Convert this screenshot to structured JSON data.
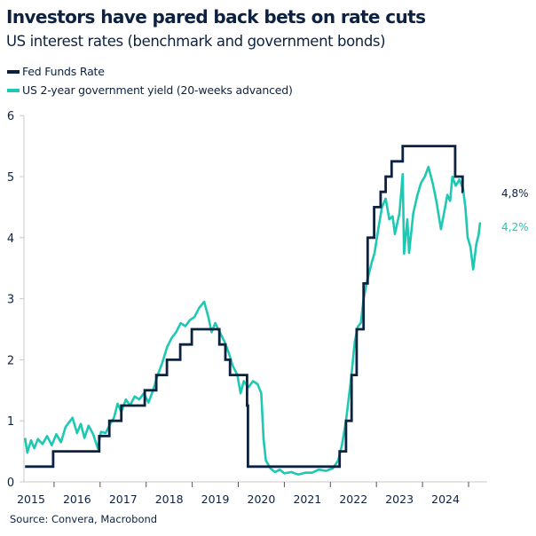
{
  "title": "Investors have pared back bets on rate cuts",
  "subtitle": "US interest rates (benchmark and government bonds)",
  "source": "Source: Convera, Macrobond",
  "colors": {
    "fed": "#0d2240",
    "yield": "#1ec8b2",
    "axis": "#c8c8c8",
    "text": "#0d2240"
  },
  "chart_data": {
    "type": "line",
    "title": "Investors have pared back bets on rate cuts",
    "subtitle": "US interest rates (benchmark and government bonds)",
    "xlabel": "",
    "ylabel": "",
    "xlim": [
      2015.0,
      2025.4
    ],
    "ylim": [
      0,
      6
    ],
    "yticks": [
      "0",
      "1",
      "2",
      "3",
      "4",
      "5",
      "6"
    ],
    "xticks": [
      "2015",
      "2016",
      "2017",
      "2018",
      "2019",
      "2020",
      "2021",
      "2022",
      "2023",
      "2024"
    ],
    "grid": false,
    "legend_position": "top-left",
    "series": [
      {
        "name": "Fed Funds Rate",
        "style": "step",
        "end_label": "4,8%",
        "points": [
          [
            2015.37,
            0.25
          ],
          [
            2015.98,
            0.5
          ],
          [
            2016.98,
            0.75
          ],
          [
            2017.2,
            1.0
          ],
          [
            2017.46,
            1.25
          ],
          [
            2017.97,
            1.5
          ],
          [
            2018.22,
            1.75
          ],
          [
            2018.45,
            2.0
          ],
          [
            2018.74,
            2.25
          ],
          [
            2018.99,
            2.5
          ],
          [
            2019.59,
            2.25
          ],
          [
            2019.72,
            2.0
          ],
          [
            2019.82,
            1.75
          ],
          [
            2020.19,
            1.25
          ],
          [
            2020.21,
            0.25
          ],
          [
            2022.2,
            0.5
          ],
          [
            2022.34,
            1.0
          ],
          [
            2022.46,
            1.75
          ],
          [
            2022.57,
            2.5
          ],
          [
            2022.72,
            3.25
          ],
          [
            2022.81,
            4.0
          ],
          [
            2022.95,
            4.5
          ],
          [
            2023.09,
            4.75
          ],
          [
            2023.2,
            5.0
          ],
          [
            2023.33,
            5.25
          ],
          [
            2023.57,
            5.5
          ],
          [
            2024.71,
            5.0
          ],
          [
            2024.87,
            4.75
          ],
          [
            2024.88,
            4.75
          ]
        ]
      },
      {
        "name": "US 2-year government yield (20-weeks advanced)",
        "style": "line",
        "end_label": "4,2%",
        "points": [
          [
            2015.37,
            0.72
          ],
          [
            2015.42,
            0.48
          ],
          [
            2015.5,
            0.68
          ],
          [
            2015.57,
            0.55
          ],
          [
            2015.65,
            0.7
          ],
          [
            2015.75,
            0.62
          ],
          [
            2015.85,
            0.75
          ],
          [
            2015.95,
            0.6
          ],
          [
            2016.05,
            0.78
          ],
          [
            2016.15,
            0.65
          ],
          [
            2016.25,
            0.9
          ],
          [
            2016.4,
            1.05
          ],
          [
            2016.5,
            0.8
          ],
          [
            2016.58,
            0.95
          ],
          [
            2016.66,
            0.72
          ],
          [
            2016.75,
            0.92
          ],
          [
            2016.85,
            0.78
          ],
          [
            2016.95,
            0.55
          ],
          [
            2017.02,
            0.82
          ],
          [
            2017.12,
            0.8
          ],
          [
            2017.22,
            0.95
          ],
          [
            2017.3,
            1.05
          ],
          [
            2017.38,
            1.28
          ],
          [
            2017.46,
            1.15
          ],
          [
            2017.56,
            1.35
          ],
          [
            2017.65,
            1.25
          ],
          [
            2017.75,
            1.4
          ],
          [
            2017.85,
            1.35
          ],
          [
            2017.95,
            1.45
          ],
          [
            2018.05,
            1.3
          ],
          [
            2018.15,
            1.5
          ],
          [
            2018.25,
            1.75
          ],
          [
            2018.35,
            1.95
          ],
          [
            2018.45,
            2.2
          ],
          [
            2018.55,
            2.35
          ],
          [
            2018.65,
            2.45
          ],
          [
            2018.75,
            2.6
          ],
          [
            2018.85,
            2.55
          ],
          [
            2018.95,
            2.65
          ],
          [
            2019.05,
            2.7
          ],
          [
            2019.15,
            2.85
          ],
          [
            2019.26,
            2.95
          ],
          [
            2019.35,
            2.7
          ],
          [
            2019.42,
            2.45
          ],
          [
            2019.5,
            2.6
          ],
          [
            2019.6,
            2.45
          ],
          [
            2019.7,
            2.3
          ],
          [
            2019.8,
            2.1
          ],
          [
            2019.88,
            1.9
          ],
          [
            2019.98,
            1.75
          ],
          [
            2020.05,
            1.45
          ],
          [
            2020.12,
            1.65
          ],
          [
            2020.22,
            1.55
          ],
          [
            2020.32,
            1.65
          ],
          [
            2020.42,
            1.6
          ],
          [
            2020.5,
            1.45
          ],
          [
            2020.55,
            0.7
          ],
          [
            2020.6,
            0.35
          ],
          [
            2020.7,
            0.22
          ],
          [
            2020.8,
            0.16
          ],
          [
            2020.9,
            0.2
          ],
          [
            2021.0,
            0.14
          ],
          [
            2021.15,
            0.16
          ],
          [
            2021.3,
            0.12
          ],
          [
            2021.45,
            0.15
          ],
          [
            2021.6,
            0.15
          ],
          [
            2021.75,
            0.2
          ],
          [
            2021.9,
            0.18
          ],
          [
            2022.05,
            0.22
          ],
          [
            2022.17,
            0.35
          ],
          [
            2022.25,
            0.6
          ],
          [
            2022.34,
            1.0
          ],
          [
            2022.45,
            1.7
          ],
          [
            2022.53,
            2.3
          ],
          [
            2022.6,
            2.55
          ],
          [
            2022.66,
            2.6
          ],
          [
            2022.72,
            3.0
          ],
          [
            2022.8,
            3.3
          ],
          [
            2022.9,
            3.6
          ],
          [
            2022.96,
            3.75
          ],
          [
            2023.03,
            4.1
          ],
          [
            2023.12,
            4.5
          ],
          [
            2023.2,
            4.64
          ],
          [
            2023.28,
            4.3
          ],
          [
            2023.35,
            4.35
          ],
          [
            2023.4,
            4.06
          ],
          [
            2023.5,
            4.4
          ],
          [
            2023.57,
            5.04
          ],
          [
            2023.6,
            3.74
          ],
          [
            2023.67,
            4.3
          ],
          [
            2023.71,
            3.75
          ],
          [
            2023.8,
            4.4
          ],
          [
            2023.89,
            4.7
          ],
          [
            2023.97,
            4.9
          ],
          [
            2024.05,
            5.0
          ],
          [
            2024.13,
            5.16
          ],
          [
            2024.22,
            4.9
          ],
          [
            2024.3,
            4.6
          ],
          [
            2024.4,
            4.14
          ],
          [
            2024.48,
            4.45
          ],
          [
            2024.54,
            4.7
          ],
          [
            2024.6,
            4.6
          ],
          [
            2024.65,
            5.0
          ],
          [
            2024.72,
            4.85
          ],
          [
            2024.8,
            4.95
          ],
          [
            2024.88,
            4.8
          ],
          [
            2024.93,
            4.5
          ],
          [
            2024.98,
            4.0
          ],
          [
            2025.04,
            3.85
          ],
          [
            2025.1,
            3.48
          ],
          [
            2025.17,
            3.9
          ],
          [
            2025.22,
            4.05
          ],
          [
            2025.25,
            4.25
          ]
        ]
      }
    ]
  }
}
